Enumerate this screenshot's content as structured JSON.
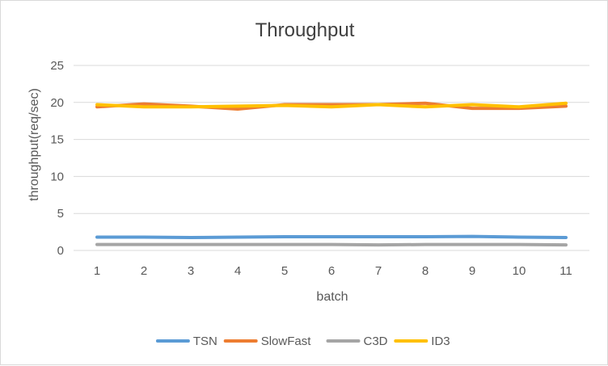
{
  "chart_data": {
    "type": "line",
    "title": "Throughput",
    "xlabel": "batch",
    "ylabel": "throughput(req/sec)",
    "x": [
      1,
      2,
      3,
      4,
      5,
      6,
      7,
      8,
      9,
      10,
      11
    ],
    "ylim": [
      0,
      25
    ],
    "yticks": [
      0,
      5,
      10,
      15,
      20,
      25
    ],
    "grid": true,
    "legend_position": "bottom",
    "series": [
      {
        "name": "TSN",
        "color": "#5b9bd5",
        "values": [
          1.8,
          1.8,
          1.75,
          1.8,
          1.85,
          1.85,
          1.85,
          1.85,
          1.9,
          1.8,
          1.75
        ]
      },
      {
        "name": "SlowFast",
        "color": "#ed7d31",
        "values": [
          19.4,
          19.8,
          19.5,
          19.1,
          19.7,
          19.7,
          19.7,
          19.9,
          19.2,
          19.2,
          19.5
        ]
      },
      {
        "name": "C3D",
        "color": "#a5a5a5",
        "values": [
          0.8,
          0.8,
          0.8,
          0.8,
          0.8,
          0.8,
          0.75,
          0.8,
          0.8,
          0.8,
          0.75
        ]
      },
      {
        "name": "ID3",
        "color": "#ffc000",
        "values": [
          19.7,
          19.4,
          19.4,
          19.5,
          19.6,
          19.4,
          19.7,
          19.4,
          19.7,
          19.4,
          19.9
        ]
      }
    ]
  }
}
